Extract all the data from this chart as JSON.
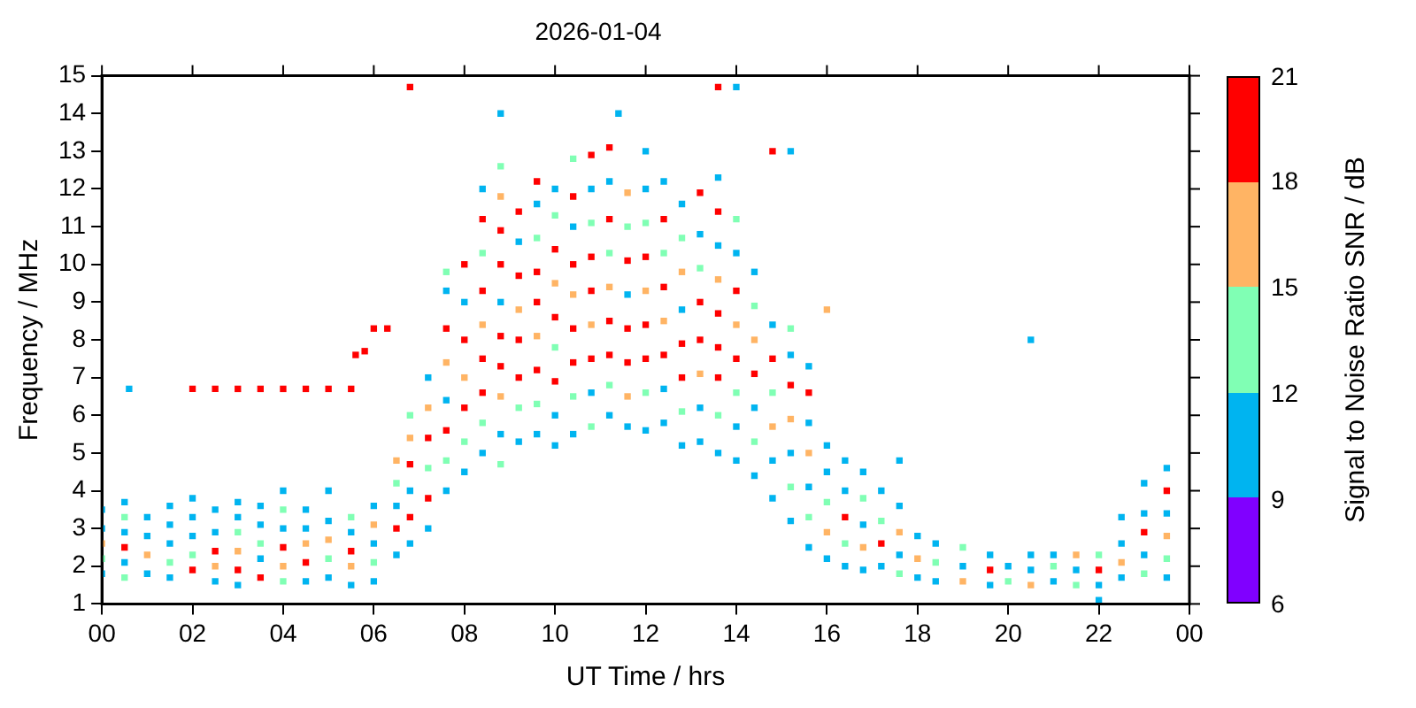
{
  "chart_data": {
    "type": "scatter",
    "title": "2026-01-04",
    "xlabel": "UT Time / hrs",
    "ylabel": "Frequency / MHz",
    "clabel": "Signal to Noise Ratio SNR / dB",
    "marker": "square",
    "grid": false,
    "legend": false,
    "xlim": [
      0,
      24
    ],
    "xticks": [
      {
        "value": 0,
        "label": "00"
      },
      {
        "value": 2,
        "label": "02"
      },
      {
        "value": 4,
        "label": "04"
      },
      {
        "value": 6,
        "label": "06"
      },
      {
        "value": 8,
        "label": "08"
      },
      {
        "value": 10,
        "label": "10"
      },
      {
        "value": 12,
        "label": "12"
      },
      {
        "value": 14,
        "label": "14"
      },
      {
        "value": 16,
        "label": "16"
      },
      {
        "value": 18,
        "label": "18"
      },
      {
        "value": 20,
        "label": "20"
      },
      {
        "value": 22,
        "label": "22"
      },
      {
        "value": 24,
        "label": "00"
      }
    ],
    "ylim": [
      1,
      15
    ],
    "yticks": [
      1,
      2,
      3,
      4,
      5,
      6,
      7,
      8,
      9,
      10,
      11,
      12,
      13,
      14,
      15
    ],
    "clim": [
      6,
      21
    ],
    "cticks": [
      6,
      9,
      12,
      15,
      18,
      21
    ],
    "series": [
      {
        "color": "#00b4f0",
        "x": [
          0,
          0,
          0,
          0.5,
          0.5,
          0.5,
          0.6,
          1,
          1,
          1,
          1.5,
          1.5,
          1.5,
          1.5,
          2,
          2,
          2,
          2.5,
          2.5,
          2.5,
          3,
          3,
          3,
          3.5,
          3.5,
          3.5,
          4,
          4,
          4.5,
          4.5,
          4.5,
          5,
          5,
          5,
          5.5,
          5.5,
          6,
          6,
          6,
          6.5,
          6.5,
          6.8,
          6.8,
          7.2,
          7.2,
          7.6,
          7.6,
          7.6,
          8,
          8,
          8.4,
          8.4,
          8.8,
          8.8,
          8.8,
          9.2,
          9.2,
          9.6,
          9.6,
          10,
          10,
          10,
          10.4,
          10.4,
          10.8,
          10.8,
          11.2,
          11.2,
          11.4,
          11.6,
          11.6,
          12,
          12,
          12,
          12.4,
          12.4,
          12.4,
          12.8,
          12.8,
          12.8,
          13.2,
          13.2,
          13.2,
          13.6,
          13.6,
          13.6,
          14,
          14,
          14,
          14,
          14.4,
          14.4,
          14.4,
          14.8,
          14.8,
          14.8,
          15.2,
          15.2,
          15.2,
          15.2,
          15.6,
          15.6,
          15.6,
          15.6,
          16,
          16,
          16,
          16.4,
          16.4,
          16.4,
          16.8,
          16.8,
          16.8,
          17.2,
          17.2,
          17.6,
          17.6,
          17.6,
          18,
          18,
          18.4,
          18.4,
          19,
          19.6,
          19.6,
          20,
          20.5,
          20.5,
          20.5,
          21,
          21,
          21.5,
          22,
          22,
          22.5,
          22.5,
          22.5,
          23,
          23,
          23,
          23.5,
          23.5,
          23.5
        ],
        "values": [
          1.8,
          3.0,
          3.5,
          2.1,
          2.9,
          3.7,
          6.7,
          1.8,
          2.8,
          3.3,
          1.7,
          2.6,
          3.1,
          3.6,
          2.8,
          3.3,
          3.8,
          1.6,
          2.9,
          3.5,
          1.5,
          3.3,
          3.7,
          2.2,
          3.1,
          3.6,
          3.0,
          4.0,
          1.6,
          3.0,
          3.5,
          1.7,
          3.2,
          4.0,
          1.5,
          2.9,
          1.6,
          2.6,
          3.6,
          2.3,
          3.6,
          2.6,
          4.0,
          3.0,
          7.0,
          4.0,
          6.4,
          9.3,
          4.5,
          9.0,
          5.0,
          12.0,
          5.5,
          9.0,
          14.0,
          5.3,
          10.6,
          5.5,
          11.6,
          5.2,
          6.0,
          12.0,
          5.5,
          11.0,
          6.6,
          12.0,
          6.0,
          12.2,
          14.0,
          5.7,
          9.2,
          5.6,
          12.0,
          13.0,
          5.8,
          6.7,
          12.2,
          5.2,
          8.8,
          11.6,
          5.3,
          6.2,
          10.8,
          5.0,
          10.5,
          12.3,
          4.8,
          5.7,
          10.3,
          14.7,
          4.4,
          6.2,
          9.8,
          3.8,
          4.8,
          8.4,
          3.2,
          5.0,
          7.6,
          13.0,
          2.5,
          4.1,
          5.8,
          7.3,
          2.2,
          4.5,
          5.2,
          2.0,
          4.0,
          4.8,
          1.9,
          3.1,
          4.5,
          2.0,
          4.0,
          2.3,
          3.6,
          4.8,
          1.7,
          2.8,
          1.6,
          2.6,
          2.0,
          1.5,
          2.3,
          2.0,
          1.9,
          2.3,
          8.0,
          1.6,
          2.3,
          1.9,
          1.1,
          1.5,
          1.7,
          2.6,
          3.3,
          2.3,
          3.4,
          4.2,
          1.7,
          3.4,
          4.6
        ]
      },
      {
        "color": "#80ffb4",
        "x": [
          0,
          0.5,
          0.5,
          1.5,
          2,
          3,
          3.5,
          4,
          4,
          5,
          5.5,
          6,
          6.5,
          6.8,
          7.2,
          7.6,
          7.6,
          8,
          8.4,
          8.4,
          8.8,
          8.8,
          9.2,
          9.6,
          9.6,
          10,
          10,
          10.4,
          10.4,
          10.8,
          10.8,
          11.2,
          11.2,
          11.6,
          12,
          12,
          12.4,
          12.8,
          12.8,
          13.2,
          13.6,
          14,
          14,
          14.4,
          14.4,
          14.8,
          15.2,
          15.2,
          15.6,
          16,
          16.4,
          16.8,
          17.2,
          17.6,
          18.4,
          19,
          20,
          21,
          21.5,
          22,
          23,
          23.5
        ],
        "values": [
          2.2,
          1.7,
          3.3,
          2.1,
          2.3,
          2.9,
          2.6,
          1.6,
          3.5,
          2.2,
          3.3,
          2.1,
          4.2,
          6.0,
          4.6,
          4.8,
          9.8,
          5.3,
          5.8,
          10.3,
          4.7,
          12.6,
          6.2,
          6.3,
          10.7,
          7.8,
          11.3,
          6.5,
          12.8,
          5.7,
          11.1,
          6.8,
          10.3,
          11.0,
          6.6,
          11.1,
          10.3,
          6.1,
          10.7,
          9.9,
          6.0,
          6.6,
          11.2,
          5.3,
          8.9,
          6.6,
          4.1,
          8.3,
          3.3,
          3.7,
          2.6,
          3.8,
          3.2,
          1.8,
          2.1,
          2.5,
          1.6,
          2.0,
          1.5,
          2.3,
          1.8,
          2.2
        ]
      },
      {
        "color": "#ffb464",
        "x": [
          0,
          1,
          2.5,
          3,
          4,
          4.5,
          5,
          5.5,
          6,
          6.5,
          6.8,
          7.2,
          7.6,
          8,
          8.4,
          8.8,
          8.8,
          9.2,
          9.6,
          10,
          10.4,
          10.8,
          11.2,
          11.6,
          11.6,
          12,
          12.4,
          12.8,
          13.2,
          13.6,
          14,
          14.4,
          14.8,
          15.2,
          15.6,
          16,
          16,
          16.8,
          17.6,
          18,
          19,
          20.5,
          21.5,
          22.5,
          23.5
        ],
        "values": [
          2.6,
          2.3,
          2.0,
          2.4,
          2.0,
          2.6,
          2.7,
          2.0,
          3.1,
          4.8,
          5.4,
          6.2,
          7.4,
          7.0,
          8.4,
          6.5,
          11.8,
          8.8,
          8.1,
          9.5,
          9.2,
          8.4,
          9.4,
          6.5,
          11.9,
          9.3,
          8.5,
          9.8,
          7.1,
          9.6,
          8.4,
          8.0,
          5.7,
          5.9,
          5.0,
          2.9,
          8.8,
          2.5,
          2.9,
          2.2,
          1.6,
          1.5,
          2.3,
          2.1,
          2.8
        ]
      },
      {
        "color": "#ff0000",
        "x": [
          0.5,
          2,
          2,
          2.5,
          2.5,
          3,
          3,
          3.5,
          3.5,
          4,
          4,
          4.5,
          4.5,
          5,
          5.5,
          5.5,
          5.6,
          5.8,
          6,
          6.3,
          6.5,
          6.8,
          6.8,
          6.8,
          7.2,
          7.2,
          7.6,
          7.6,
          8,
          8,
          8,
          8.4,
          8.4,
          8.4,
          8.4,
          8.8,
          8.8,
          8.8,
          8.8,
          9.2,
          9.2,
          9.2,
          9.2,
          9.6,
          9.6,
          9.6,
          9.6,
          10,
          10,
          10,
          10.4,
          10.4,
          10.4,
          10.4,
          10.8,
          10.8,
          10.8,
          10.8,
          11.2,
          11.2,
          11.2,
          11.2,
          11.6,
          11.6,
          11.6,
          12,
          12,
          12,
          12.4,
          12.4,
          12.4,
          12.8,
          12.8,
          13.2,
          13.2,
          13.2,
          13.6,
          13.6,
          13.6,
          13.6,
          13.6,
          14,
          14,
          14.4,
          14.8,
          14.8,
          15.2,
          15.6,
          16.4,
          17.2,
          19.6,
          22,
          23,
          23.5
        ],
        "values": [
          2.5,
          1.9,
          6.7,
          2.4,
          6.7,
          1.9,
          6.7,
          1.7,
          6.7,
          2.5,
          6.7,
          2.1,
          6.7,
          6.7,
          2.4,
          6.7,
          7.6,
          7.7,
          8.3,
          8.3,
          3.0,
          3.3,
          4.7,
          14.7,
          3.8,
          5.4,
          5.6,
          8.3,
          6.2,
          8.0,
          10.0,
          6.6,
          7.5,
          9.3,
          11.2,
          7.3,
          8.1,
          10.0,
          10.9,
          7.0,
          8.0,
          9.7,
          11.4,
          7.2,
          9.0,
          9.8,
          12.2,
          6.9,
          8.6,
          10.4,
          7.4,
          8.3,
          10.0,
          11.8,
          7.5,
          9.3,
          10.2,
          12.9,
          7.6,
          8.5,
          11.2,
          13.1,
          7.4,
          8.3,
          10.1,
          7.5,
          8.4,
          10.2,
          7.6,
          9.4,
          11.2,
          7.0,
          7.9,
          8.0,
          9.0,
          11.9,
          7.0,
          7.8,
          8.7,
          11.4,
          14.7,
          7.5,
          9.3,
          7.1,
          7.5,
          13.0,
          6.8,
          6.6,
          3.3,
          2.6,
          1.9,
          1.9,
          2.9,
          4.0
        ]
      }
    ]
  }
}
